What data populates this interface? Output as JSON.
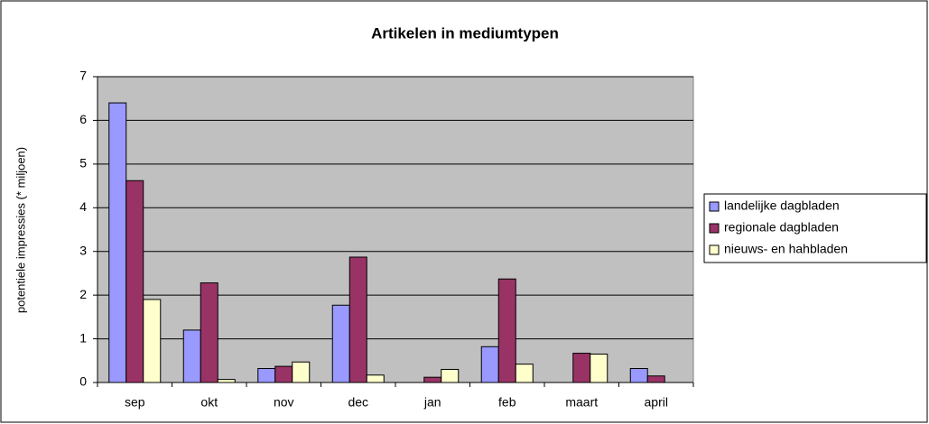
{
  "chart_data": {
    "type": "bar",
    "title": "Artikelen in mediumtypen",
    "y_label": "potentiele impressies (* miljoen)",
    "categories": [
      "sep",
      "okt",
      "nov",
      "dec",
      "jan",
      "feb",
      "maart",
      "april"
    ],
    "series": [
      {
        "name": "landelijke dagbladen",
        "color": "#9999ff",
        "values": [
          6.4,
          1.2,
          0.32,
          1.77,
          0,
          0.82,
          0,
          0.32
        ]
      },
      {
        "name": "regionale dagbladen",
        "color": "#993366",
        "values": [
          4.62,
          2.28,
          0.37,
          2.87,
          0.12,
          2.37,
          0.67,
          0.15
        ]
      },
      {
        "name": "nieuws- en hahbladen",
        "color": "#ffffcc",
        "values": [
          1.9,
          0.07,
          0.47,
          0.17,
          0.3,
          0.42,
          0.65,
          0
        ]
      }
    ],
    "ylim": [
      0,
      7
    ],
    "yticks": [
      0,
      1,
      2,
      3,
      4,
      5,
      6,
      7
    ],
    "grid": true,
    "legend": "right",
    "plot_background": "#c0c0c0"
  }
}
